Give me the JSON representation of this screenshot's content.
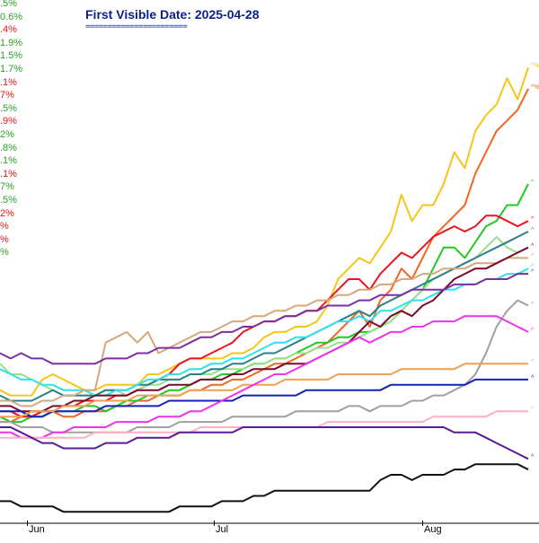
{
  "chart_data": {
    "type": "line",
    "title": "First Visible Date: 2025-04-28",
    "title_rule": "=======================",
    "x_labels": [
      "Jun",
      "Jul",
      "Aug"
    ],
    "left_labels": [
      {
        "text": ".5%",
        "color": "#2ca02c"
      },
      {
        "text": "0.6%",
        "color": "#2ca02c"
      },
      {
        "text": ".4%",
        "color": "#e8161c"
      },
      {
        "text": "1.9%",
        "color": "#2ca02c"
      },
      {
        "text": "1.5%",
        "color": "#2ca02c"
      },
      {
        "text": "1.7%",
        "color": "#2ca02c"
      },
      {
        "text": ".1%",
        "color": "#e8161c"
      },
      {
        "text": "7%",
        "color": "#e8161c"
      },
      {
        "text": ".5%",
        "color": "#2ca02c"
      },
      {
        "text": ".9%",
        "color": "#e8161c"
      },
      {
        "text": "2%",
        "color": "#2ca02c"
      },
      {
        "text": ".8%",
        "color": "#2ca02c"
      },
      {
        "text": ".1%",
        "color": "#2ca02c"
      },
      {
        "text": ".1%",
        "color": "#e8161c"
      },
      {
        "text": "7%",
        "color": "#2ca02c"
      },
      {
        "text": ".5%",
        "color": "#2ca02c"
      },
      {
        "text": "2%",
        "color": "#e8161c"
      },
      {
        "text": "%",
        "color": "#e8161c"
      },
      {
        "text": "%",
        "color": "#e8161c"
      },
      {
        "text": "%",
        "color": "#2ca02c"
      }
    ],
    "series": [
      {
        "color": "#f5c518",
        "end_tag": "^%",
        "values": [
          3,
          2,
          2,
          2,
          5,
          6,
          5,
          4,
          3,
          3,
          4,
          4,
          4,
          4,
          6,
          6,
          7,
          8,
          9,
          9,
          9,
          9,
          10,
          10,
          11,
          13,
          14,
          14,
          15,
          15,
          16,
          19,
          24,
          26,
          28,
          27,
          30,
          33,
          40,
          35,
          38,
          38,
          42,
          48,
          45,
          52,
          55,
          57,
          62,
          58,
          64
        ]
      },
      {
        "color": "#f26522",
        "end_tag": "^%",
        "values": [
          -3,
          -3,
          -2,
          -2,
          -1,
          -1,
          -2,
          -2,
          -1,
          -1,
          -1,
          0,
          0,
          1,
          1,
          2,
          2,
          2,
          3,
          3,
          4,
          4,
          5,
          5,
          6,
          7,
          8,
          8,
          9,
          10,
          11,
          12,
          14,
          16,
          18,
          15,
          20,
          22,
          26,
          24,
          28,
          32,
          34,
          36,
          38,
          44,
          48,
          52,
          54,
          56,
          60
        ]
      },
      {
        "color": "#22c922",
        "end_tag": "^",
        "values": [
          -2,
          -3,
          -3,
          -2,
          -2,
          -1,
          -1,
          -1,
          0,
          0,
          -1,
          0,
          1,
          1,
          2,
          2,
          3,
          3,
          4,
          5,
          5,
          6,
          6,
          7,
          8,
          8,
          9,
          9,
          10,
          11,
          12,
          12,
          13,
          13,
          14,
          14,
          15,
          16,
          18,
          20,
          22,
          26,
          30,
          30,
          28,
          31,
          34,
          35,
          38,
          38,
          42
        ]
      },
      {
        "color": "#e8161c",
        "end_tag": "^",
        "values": [
          -1,
          -1,
          -2,
          -2,
          -1,
          -1,
          0,
          0,
          1,
          1,
          1,
          2,
          2,
          3,
          4,
          5,
          6,
          8,
          9,
          9,
          10,
          11,
          12,
          14,
          15,
          16,
          16,
          17,
          17,
          18,
          18,
          20,
          22,
          24,
          24,
          22,
          25,
          27,
          29,
          28,
          30,
          32,
          33,
          34,
          33,
          34,
          36,
          36,
          35,
          34,
          35
        ]
      },
      {
        "color": "#98e08a",
        "end_tag": "^",
        "values": [
          8,
          6,
          6,
          5,
          4,
          3,
          2,
          2,
          2,
          2,
          3,
          3,
          2,
          3,
          4,
          4,
          5,
          5,
          6,
          6,
          6,
          7,
          7,
          7,
          8,
          8,
          9,
          9,
          10,
          10,
          11,
          11,
          12,
          12,
          13,
          14,
          15,
          16,
          18,
          20,
          22,
          24,
          25,
          26,
          27,
          28,
          30,
          32,
          30,
          29,
          30
        ]
      },
      {
        "color": "#2a7f8a",
        "end_tag": "^",
        "values": [
          2,
          1,
          1,
          1,
          2,
          3,
          2,
          2,
          2,
          2,
          3,
          3,
          3,
          4,
          4,
          5,
          5,
          5,
          6,
          6,
          7,
          7,
          8,
          8,
          9,
          10,
          10,
          11,
          12,
          13,
          14,
          15,
          16,
          17,
          18,
          17,
          19,
          20,
          21,
          22,
          23,
          24,
          25,
          26,
          27,
          28,
          29,
          30,
          31,
          32,
          33
        ]
      },
      {
        "color": "#2fe0f0",
        "end_tag": "^",
        "values": [
          7,
          6,
          5,
          5,
          4,
          4,
          3,
          3,
          3,
          2,
          2,
          3,
          3,
          4,
          5,
          5,
          6,
          6,
          7,
          7,
          8,
          8,
          9,
          9,
          10,
          11,
          12,
          12,
          13,
          13,
          14,
          15,
          16,
          16,
          17,
          16,
          18,
          18,
          19,
          20,
          20,
          21,
          22,
          22,
          23,
          23,
          24,
          24,
          25,
          25,
          26
        ]
      },
      {
        "color": "#d4a87a",
        "end_tag": "^",
        "values": [
          1,
          1,
          0,
          0,
          1,
          1,
          2,
          2,
          3,
          3,
          12,
          13,
          14,
          12,
          14,
          10,
          11,
          12,
          13,
          14,
          14,
          15,
          16,
          16,
          17,
          17,
          18,
          18,
          19,
          19,
          20,
          20,
          21,
          21,
          22,
          22,
          23,
          23,
          24,
          24,
          25,
          25,
          26,
          26,
          26,
          27,
          27,
          27,
          28,
          28,
          28
        ]
      },
      {
        "color": "#7a0a2a",
        "end_tag": "^",
        "values": [
          0,
          0,
          -1,
          -1,
          -1,
          0,
          0,
          1,
          1,
          2,
          2,
          2,
          2,
          3,
          3,
          3,
          4,
          4,
          4,
          5,
          5,
          5,
          6,
          6,
          7,
          7,
          7,
          8,
          8,
          8,
          9,
          10,
          11,
          12,
          14,
          16,
          15,
          17,
          18,
          17,
          19,
          20,
          22,
          24,
          25,
          26,
          26,
          27,
          28,
          29,
          30
        ]
      },
      {
        "color": "#7b2fa0",
        "end_tag": "^",
        "values": [
          10,
          9,
          10,
          9,
          9,
          8,
          8,
          8,
          8,
          8,
          9,
          9,
          9,
          10,
          10,
          11,
          11,
          11,
          12,
          13,
          13,
          14,
          14,
          15,
          15,
          16,
          16,
          17,
          17,
          18,
          18,
          19,
          19,
          19,
          20,
          20,
          21,
          21,
          21,
          22,
          22,
          22,
          22,
          23,
          23,
          23,
          24,
          24,
          24,
          25,
          25
        ]
      },
      {
        "color": "#a0a0a0",
        "end_tag": "^",
        "values": [
          -3,
          -3,
          -4,
          -4,
          -4,
          -5,
          -5,
          -5,
          -5,
          -5,
          -5,
          -5,
          -5,
          -4,
          -4,
          -4,
          -4,
          -3,
          -3,
          -3,
          -3,
          -3,
          -2,
          -2,
          -2,
          -2,
          -2,
          -2,
          -1,
          -1,
          -1,
          -1,
          -1,
          0,
          0,
          -1,
          0,
          0,
          0,
          1,
          1,
          2,
          2,
          3,
          4,
          6,
          10,
          15,
          18,
          20,
          19
        ]
      },
      {
        "color": "#1122bb",
        "end_tag": "^",
        "values": [
          -1,
          -1,
          -1,
          -2,
          -2,
          -1,
          -1,
          -1,
          -1,
          -1,
          0,
          0,
          0,
          0,
          0,
          0,
          1,
          1,
          1,
          1,
          1,
          1,
          1,
          2,
          2,
          2,
          2,
          2,
          2,
          3,
          3,
          3,
          3,
          3,
          3,
          3,
          3,
          4,
          4,
          4,
          4,
          4,
          4,
          4,
          4,
          5,
          5,
          5,
          5,
          5,
          5
        ]
      },
      {
        "color": "#f0a050",
        "end_tag": "^",
        "values": [
          -2,
          -2,
          -2,
          -1,
          -1,
          -1,
          0,
          0,
          0,
          1,
          1,
          1,
          1,
          2,
          2,
          2,
          2,
          2,
          3,
          3,
          3,
          3,
          3,
          4,
          4,
          4,
          4,
          5,
          5,
          5,
          5,
          5,
          6,
          6,
          6,
          6,
          6,
          6,
          7,
          7,
          7,
          7,
          7,
          7,
          8,
          8,
          8,
          8,
          8,
          8,
          8
        ]
      },
      {
        "color": "#ee33ee",
        "end_tag": "^",
        "values": [
          -5,
          -5,
          -6,
          -6,
          -6,
          -5,
          -5,
          -4,
          -4,
          -4,
          -4,
          -3,
          -3,
          -3,
          -3,
          -2,
          -2,
          -2,
          -1,
          -1,
          0,
          1,
          2,
          3,
          4,
          5,
          6,
          6,
          7,
          8,
          9,
          10,
          11,
          12,
          13,
          12,
          13,
          14,
          14,
          15,
          15,
          16,
          16,
          16,
          17,
          17,
          17,
          17,
          16,
          15,
          14
        ]
      },
      {
        "color": "#ffb0c0",
        "end_tag": "^",
        "values": [
          -6,
          -6,
          -6,
          -6,
          -6,
          -6,
          -6,
          -6,
          -6,
          -5,
          -5,
          -5,
          -5,
          -5,
          -5,
          -5,
          -5,
          -5,
          -5,
          -4,
          -4,
          -4,
          -4,
          -4,
          -4,
          -4,
          -4,
          -4,
          -4,
          -4,
          -4,
          -3,
          -3,
          -3,
          -3,
          -3,
          -3,
          -3,
          -3,
          -3,
          -3,
          -2,
          -2,
          -2,
          -2,
          -2,
          -2,
          -1,
          -1,
          -1,
          -1
        ]
      },
      {
        "color": "#5a1a9a",
        "end_tag": "^",
        "values": [
          -4,
          -4,
          -5,
          -6,
          -7,
          -7,
          -8,
          -8,
          -8,
          -8,
          -7,
          -7,
          -7,
          -6,
          -6,
          -6,
          -6,
          -5,
          -5,
          -5,
          -5,
          -5,
          -5,
          -4,
          -4,
          -4,
          -4,
          -4,
          -4,
          -4,
          -4,
          -4,
          -4,
          -4,
          -4,
          -4,
          -4,
          -4,
          -4,
          -4,
          -4,
          -4,
          -4,
          -5,
          -5,
          -5,
          -6,
          -7,
          -8,
          -9,
          -10
        ]
      },
      {
        "color": "#111111",
        "end_tag": "",
        "values": [
          -18,
          -18,
          -19,
          -19,
          -19,
          -19,
          -20,
          -20,
          -20,
          -20,
          -20,
          -20,
          -20,
          -20,
          -20,
          -20,
          -20,
          -19,
          -19,
          -19,
          -19,
          -18,
          -18,
          -18,
          -17,
          -17,
          -16,
          -16,
          -16,
          -16,
          -16,
          -16,
          -16,
          -16,
          -16,
          -16,
          -14,
          -13,
          -13,
          -14,
          -13,
          -13,
          -13,
          -12,
          -12,
          -11,
          -11,
          -11,
          -11,
          -11,
          -12
        ]
      }
    ]
  }
}
